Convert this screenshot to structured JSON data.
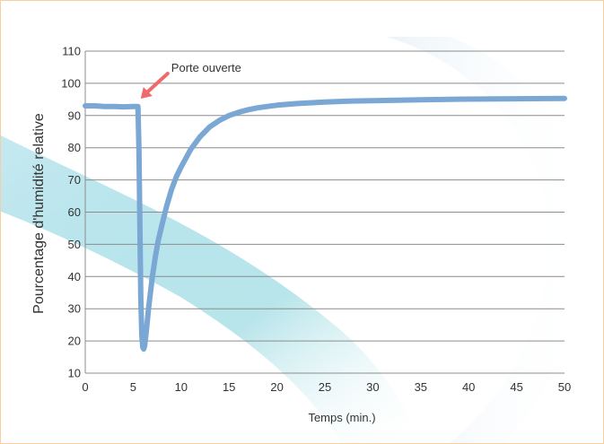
{
  "chart_data": {
    "type": "line",
    "xlabel": "Temps (min.)",
    "ylabel": "Pourcentage d'humidité relative",
    "xlim": [
      0,
      50
    ],
    "ylim": [
      10,
      110
    ],
    "x_ticks": [
      0,
      5,
      10,
      15,
      20,
      25,
      30,
      35,
      40,
      45,
      50
    ],
    "y_ticks": [
      10,
      20,
      30,
      40,
      50,
      60,
      70,
      80,
      90,
      100,
      110
    ],
    "grid": "horizontal",
    "series": [
      {
        "color": "#7aa7d4",
        "x": [
          0,
          1,
          2,
          3,
          4,
          5,
          5.5,
          5.6,
          5.7,
          5.8,
          5.9,
          6.0,
          6.1,
          6.2,
          6.4,
          6.6,
          6.8,
          7.0,
          7.3,
          7.6,
          8.0,
          8.5,
          9.0,
          9.5,
          10,
          11,
          12,
          13,
          14,
          15,
          16,
          17,
          18,
          19,
          20,
          22,
          25,
          28,
          30,
          35,
          40,
          45,
          50
        ],
        "y": [
          93,
          93,
          92.8,
          92.8,
          92.7,
          92.8,
          92.8,
          80,
          55,
          33,
          22,
          18,
          17.5,
          18.5,
          24,
          30,
          35,
          40,
          46,
          51,
          56,
          62,
          67,
          71,
          74,
          79.5,
          83.5,
          86.5,
          88.5,
          90,
          91,
          91.8,
          92.4,
          92.8,
          93.2,
          93.7,
          94.2,
          94.5,
          94.6,
          94.9,
          95.1,
          95.2,
          95.3
        ]
      }
    ],
    "annotations": [
      {
        "text": "Porte ouverte",
        "target_x": 5.6,
        "target_y": 93,
        "arrow_color": "#ef6b6b"
      }
    ]
  }
}
